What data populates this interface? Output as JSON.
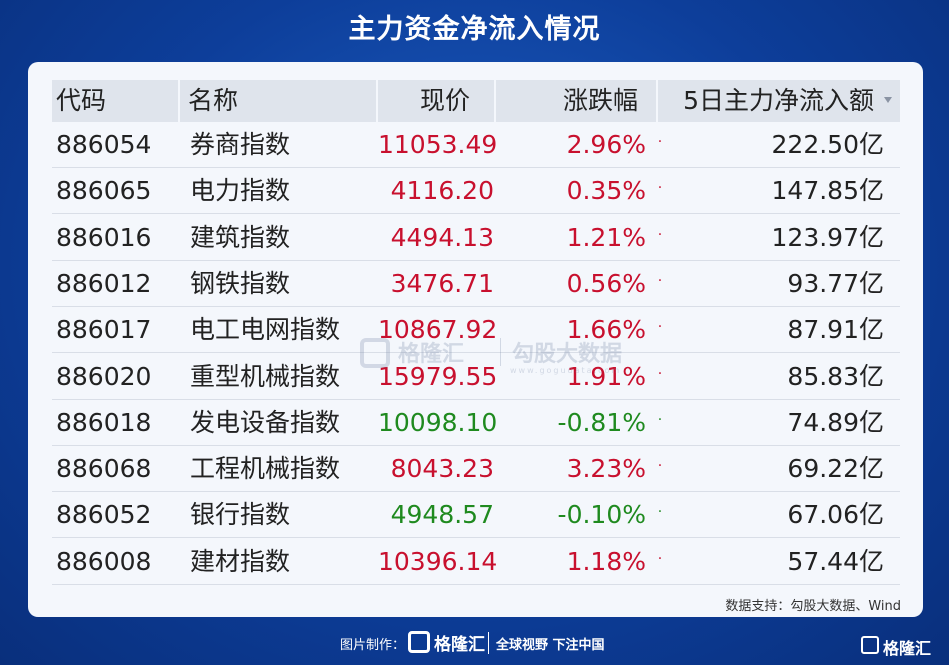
{
  "title": "主力资金净流入情况",
  "headers": {
    "code": "代码",
    "name": "名称",
    "price": "现价",
    "change": "涨跌幅",
    "flow": "5日主力净流入额"
  },
  "rows": [
    {
      "code": "886054",
      "name": "券商指数",
      "price": "11053.49",
      "change": "2.96%",
      "flow": "222.50亿",
      "dir": "up"
    },
    {
      "code": "886065",
      "name": "电力指数",
      "price": "4116.20",
      "change": "0.35%",
      "flow": "147.85亿",
      "dir": "up"
    },
    {
      "code": "886016",
      "name": "建筑指数",
      "price": "4494.13",
      "change": "1.21%",
      "flow": "123.97亿",
      "dir": "up"
    },
    {
      "code": "886012",
      "name": "钢铁指数",
      "price": "3476.71",
      "change": "0.56%",
      "flow": "93.77亿",
      "dir": "up"
    },
    {
      "code": "886017",
      "name": "电工电网指数",
      "price": "10867.92",
      "change": "1.66%",
      "flow": "87.91亿",
      "dir": "up"
    },
    {
      "code": "886020",
      "name": "重型机械指数",
      "price": "15979.55",
      "change": "1.91%",
      "flow": "85.83亿",
      "dir": "up"
    },
    {
      "code": "886018",
      "name": "发电设备指数",
      "price": "10098.10",
      "change": "-0.81%",
      "flow": "74.89亿",
      "dir": "down"
    },
    {
      "code": "886068",
      "name": "工程机械指数",
      "price": "8043.23",
      "change": "3.23%",
      "flow": "69.22亿",
      "dir": "up"
    },
    {
      "code": "886052",
      "name": "银行指数",
      "price": "4948.57",
      "change": "-0.10%",
      "flow": "67.06亿",
      "dir": "down"
    },
    {
      "code": "886008",
      "name": "建材指数",
      "price": "10396.14",
      "change": "1.18%",
      "flow": "57.44亿",
      "dir": "up"
    }
  ],
  "source": "数据支持：勾股大数据、Wind",
  "watermark": {
    "brand": "格隆汇",
    "product": "勾股大数据",
    "url": "www.gogudata.com"
  },
  "footer": {
    "label": "图片制作：",
    "brand": "格隆汇",
    "slogan": "全球视野 下注中国"
  },
  "corner_brand": "格隆汇",
  "colors": {
    "up": "#c8102e",
    "down": "#1f8a1f",
    "header_bg": "#dfe4ec",
    "background": "#0d3e9a"
  }
}
